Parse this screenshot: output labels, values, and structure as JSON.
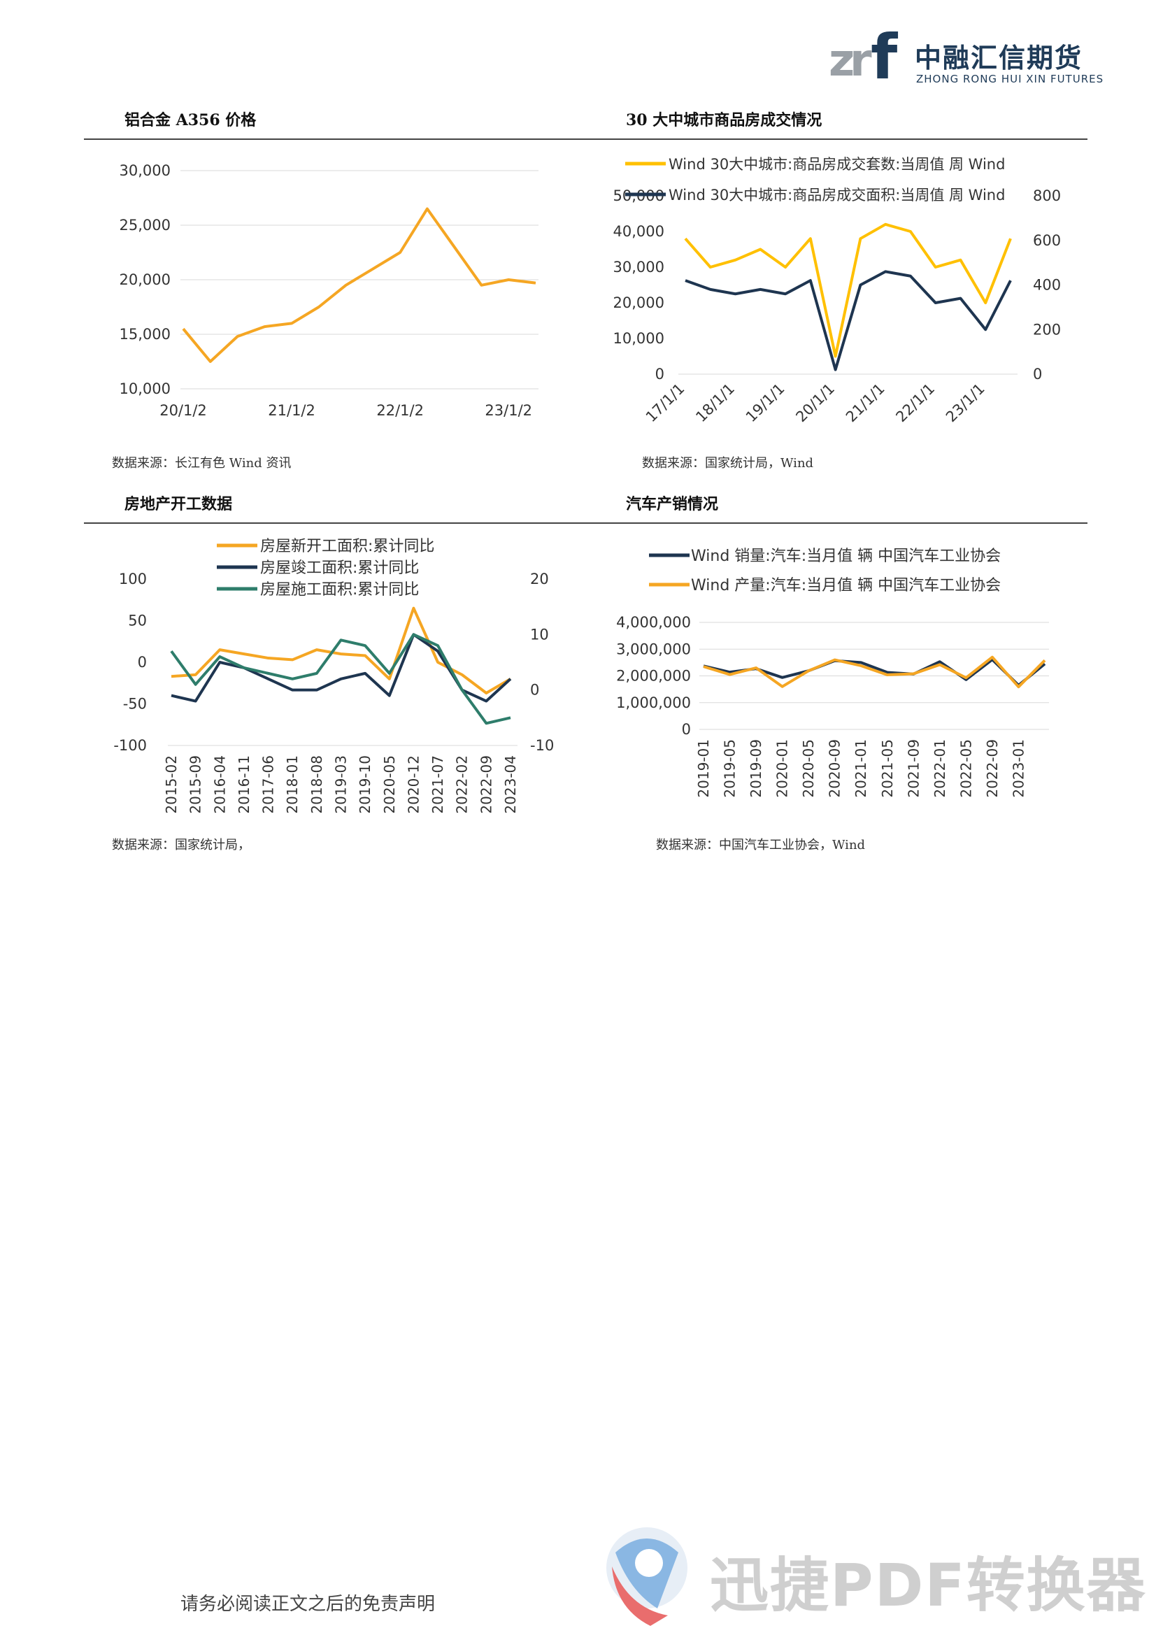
{
  "header": {
    "logo_cn": "中融汇信期货",
    "logo_en": "ZHONG RONG HUI XIN FUTURES"
  },
  "colors": {
    "orange": "#F5A623",
    "navy": "#1E3550",
    "green": "#2E7D6B",
    "yellow": "#FFC000",
    "rule": "#444444"
  },
  "sections": [
    {
      "title": "铝合金 A356 价格",
      "source": "数据来源：长江有色 Wind 资讯"
    },
    {
      "title": "30 大中城市商品房成交情况",
      "source": "数据来源：国家统计局，Wind"
    },
    {
      "title": "房地产开工数据",
      "source": "数据来源：国家统计局，"
    },
    {
      "title": "汽车产销情况",
      "source": "数据来源：中国汽车工业协会，Wind"
    }
  ],
  "chart_data": [
    {
      "type": "line",
      "x": [
        "20/1/2",
        "20/4/1",
        "20/7/1",
        "20/10/1",
        "21/1/2",
        "21/4/1",
        "21/7/1",
        "21/10/1",
        "22/1/2",
        "22/4/1",
        "22/7/1",
        "22/10/1",
        "23/1/2",
        "23/4/1"
      ],
      "series": [
        {
          "values": [
            15500,
            12500,
            14800,
            15700,
            16000,
            17500,
            19500,
            21000,
            22500,
            26500,
            23000,
            19500,
            20000,
            19700
          ]
        }
      ],
      "xticks": [
        "20/1/2",
        "21/1/2",
        "22/1/2",
        "23/1/2"
      ],
      "yticks": [
        "10,000",
        "15,000",
        "20,000",
        "25,000",
        "30,000"
      ],
      "ylim": [
        10000,
        30000
      ],
      "grid": true
    },
    {
      "type": "line",
      "x": [
        "17/1/1",
        "17/7/1",
        "18/1/1",
        "18/7/1",
        "19/1/1",
        "19/7/1",
        "20/1/1",
        "20/7/1",
        "21/1/1",
        "21/7/1",
        "22/1/1",
        "22/7/1",
        "23/1/1",
        "23/4/1"
      ],
      "series": [
        {
          "name": "Wind 30大中城市:商品房成交套数:当周值 周 Wind",
          "axis": "left",
          "values": [
            38000,
            30000,
            32000,
            35000,
            30000,
            38000,
            5000,
            38000,
            42000,
            40000,
            30000,
            32000,
            20000,
            38000
          ]
        },
        {
          "name": "Wind 30大中城市:商品房成交面积:当周值 周 Wind",
          "axis": "right",
          "values": [
            420,
            380,
            360,
            380,
            360,
            420,
            20,
            400,
            460,
            440,
            320,
            340,
            200,
            420
          ]
        }
      ],
      "xticks": [
        "17/1/1",
        "18/1/1",
        "19/1/1",
        "20/1/1",
        "21/1/1",
        "22/1/1",
        "23/1/1"
      ],
      "yticks_left": [
        "0",
        "10,000",
        "20,000",
        "30,000",
        "40,000",
        "50,000"
      ],
      "yticks_right": [
        "0",
        "200",
        "400",
        "600",
        "800"
      ],
      "ylim_left": [
        0,
        50000
      ],
      "ylim_right": [
        0,
        800
      ],
      "legend": "top"
    },
    {
      "type": "line",
      "x": [
        "2015-02",
        "2015-09",
        "2016-04",
        "2016-11",
        "2017-06",
        "2018-01",
        "2018-08",
        "2019-03",
        "2019-10",
        "2020-05",
        "2020-12",
        "2021-07",
        "2022-02",
        "2022-09",
        "2023-04"
      ],
      "series": [
        {
          "name": "房屋新开工面积:累计同比",
          "axis": "left",
          "values": [
            -17,
            -15,
            15,
            10,
            5,
            3,
            15,
            10,
            8,
            -20,
            65,
            0,
            -15,
            -37,
            -20
          ]
        },
        {
          "name": "房屋竣工面积:累计同比",
          "axis": "right",
          "values": [
            -1,
            -2,
            5,
            4,
            2,
            0,
            0,
            2,
            3,
            -1,
            10,
            7,
            0,
            -2,
            2
          ]
        },
        {
          "name": "房屋施工面积:累计同比",
          "axis": "right",
          "values": [
            7,
            1,
            6,
            4,
            3,
            2,
            3,
            9,
            8,
            3,
            10,
            8,
            0,
            -6,
            -5
          ]
        }
      ],
      "xticks": [
        "2015-02",
        "2015-09",
        "2016-04",
        "2016-11",
        "2017-06",
        "2018-01",
        "2018-08",
        "2019-03",
        "2019-10",
        "2020-05",
        "2020-12",
        "2021-07",
        "2022-02",
        "2022-09",
        "2023-04"
      ],
      "yticks_left": [
        "-100",
        "-50",
        "0",
        "50",
        "100"
      ],
      "yticks_right": [
        "-10",
        "0",
        "10",
        "20"
      ],
      "ylim_left": [
        -100,
        100
      ],
      "ylim_right": [
        -10,
        20
      ],
      "legend": "top"
    },
    {
      "type": "line",
      "x": [
        "2019-01",
        "2019-05",
        "2019-09",
        "2020-01",
        "2020-05",
        "2020-09",
        "2021-01",
        "2021-05",
        "2021-09",
        "2022-01",
        "2022-05",
        "2022-09",
        "2023-01",
        "2023-03"
      ],
      "series": [
        {
          "name": "Wind 销量:汽车:当月值 辆 中国汽车工业协会",
          "values": [
            2370000,
            2140000,
            2270000,
            1940000,
            2190000,
            2570000,
            2500000,
            2130000,
            2070000,
            2530000,
            1860000,
            2610000,
            1650000,
            2450000
          ]
        },
        {
          "name": "Wind 产量:汽车:当月值 辆 中国汽车工业协会",
          "values": [
            2350000,
            2050000,
            2300000,
            1600000,
            2190000,
            2600000,
            2380000,
            2040000,
            2080000,
            2420000,
            1930000,
            2700000,
            1590000,
            2580000
          ]
        }
      ],
      "xticks": [
        "2019-01",
        "2019-05",
        "2019-09",
        "2020-01",
        "2020-05",
        "2020-09",
        "2021-01",
        "2021-05",
        "2021-09",
        "2022-01",
        "2022-05",
        "2022-09",
        "2023-01"
      ],
      "yticks": [
        "0",
        "1,000,000",
        "2,000,000",
        "3,000,000",
        "4,000,000"
      ],
      "ylim": [
        0,
        4000000
      ],
      "legend": "top"
    }
  ],
  "footer": {
    "text": "请务必阅读正文之后的免责声明"
  },
  "watermark": {
    "text": "迅捷PDF转换器"
  }
}
